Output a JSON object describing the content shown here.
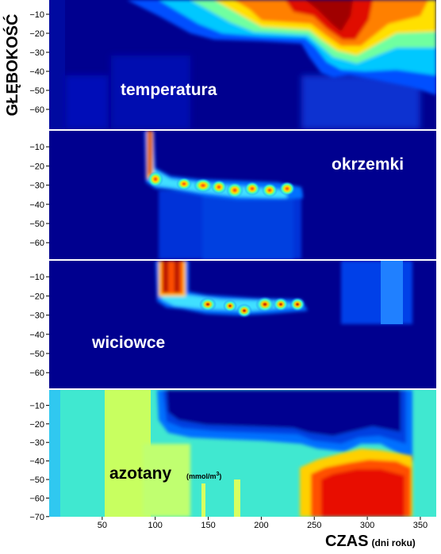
{
  "chart_data": [
    {
      "type": "heatmap",
      "panel_label": "temperatura",
      "ylim": [
        -70,
        0
      ],
      "y_ticks": [
        -10,
        -20,
        -30,
        -40,
        -50,
        -60
      ],
      "xlim": [
        0,
        365
      ],
      "grid": false,
      "colors": {
        "background": "#000090",
        "deep": "#0a1fb0",
        "warm": "#ffd000",
        "hot": "#ff3000",
        "max": "#b00000"
      }
    },
    {
      "type": "heatmap",
      "panel_label": "okrzemki",
      "ylim": [
        -70,
        0
      ],
      "y_ticks": [
        -10,
        -20,
        -30,
        -40,
        -50,
        -60
      ],
      "xlim": [
        0,
        365
      ],
      "grid": false
    },
    {
      "type": "heatmap",
      "panel_label": "wiciowce",
      "ylim": [
        -70,
        0
      ],
      "y_ticks": [
        -10,
        -20,
        -30,
        -40,
        -50,
        -60
      ],
      "xlim": [
        0,
        365
      ],
      "grid": false
    },
    {
      "type": "heatmap",
      "panel_label": "azotany",
      "unit_prefix": "(mmol/m",
      "unit_power": "3",
      "unit_suffix": ")",
      "ylim": [
        -70,
        0
      ],
      "y_ticks": [
        -10,
        -20,
        -30,
        -40,
        -50,
        -60,
        -70
      ],
      "x_ticks": [
        50,
        100,
        150,
        200,
        250,
        300,
        350
      ],
      "xlim": [
        0,
        365
      ],
      "grid": false
    }
  ],
  "axes": {
    "ylabel": "GŁĘBOKOŚĆ",
    "xlabel": "CZAS",
    "xlabel_sub": "(dni roku)"
  }
}
